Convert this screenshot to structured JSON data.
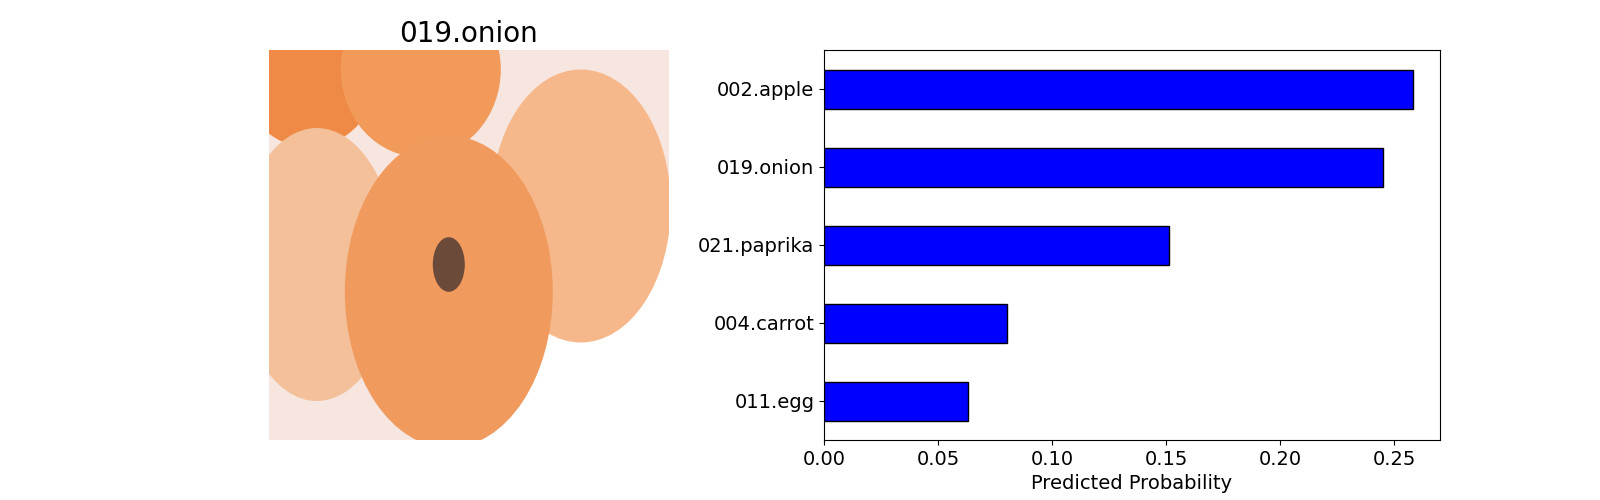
{
  "chart_data": [
    {
      "type": "image",
      "title": "019.onion"
    },
    {
      "type": "bar",
      "orientation": "horizontal",
      "categories": [
        "002.apple",
        "019.onion",
        "021.paprika",
        "004.carrot",
        "011.egg"
      ],
      "values": [
        0.258,
        0.245,
        0.151,
        0.08,
        0.063
      ],
      "color": "#0000ff",
      "x_label": "Predicted Probability",
      "xlim": [
        0,
        0.27
      ],
      "xticks": [
        {
          "value": 0,
          "label": "0.00"
        },
        {
          "value": 0.05,
          "label": "0.05"
        },
        {
          "value": 0.1,
          "label": "0.10"
        },
        {
          "value": 0.15,
          "label": "0.15"
        },
        {
          "value": 0.2,
          "label": "0.20"
        },
        {
          "value": 0.25,
          "label": "0.25"
        }
      ],
      "grid": false
    }
  ]
}
